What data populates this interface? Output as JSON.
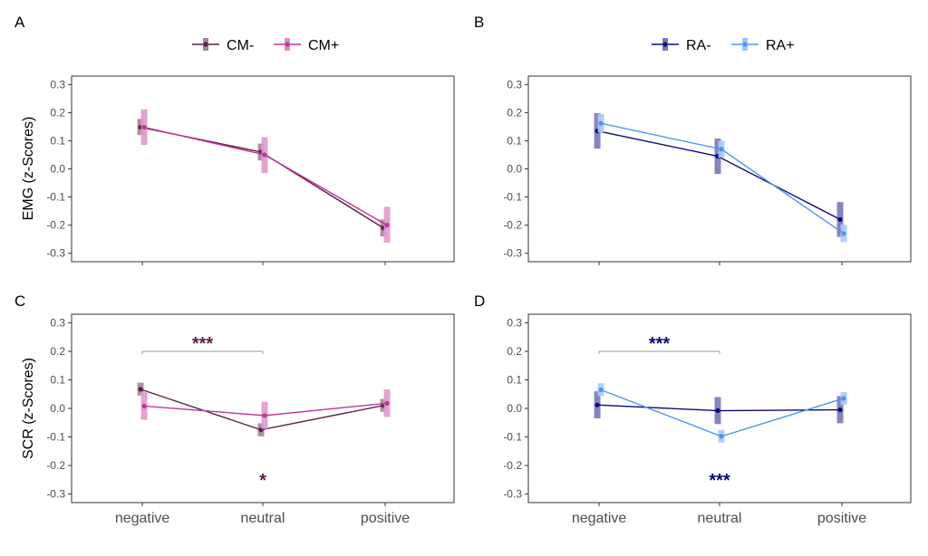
{
  "chart_data": [
    {
      "panel": "A",
      "type": "line",
      "categories": [
        "negative",
        "neutral",
        "positive"
      ],
      "ylabel": "EMG (z-Scores)",
      "ylim": [
        -0.33,
        0.33
      ],
      "yticks": [
        -0.3,
        -0.2,
        -0.1,
        0.0,
        0.1,
        0.2,
        0.3
      ],
      "grid": false,
      "legend": "top",
      "series": [
        {
          "name": "CM-",
          "color": "#5c1f4a",
          "values": [
            0.148,
            0.06,
            -0.21
          ],
          "lower": [
            0.12,
            0.03,
            -0.24
          ],
          "upper": [
            0.178,
            0.09,
            -0.18
          ]
        },
        {
          "name": "CM+",
          "color": "#c0359a",
          "values": [
            0.148,
            0.05,
            -0.2
          ],
          "lower": [
            0.085,
            -0.015,
            -0.262
          ],
          "upper": [
            0.212,
            0.113,
            -0.135
          ]
        }
      ],
      "annotations": []
    },
    {
      "panel": "B",
      "type": "line",
      "categories": [
        "negative",
        "neutral",
        "positive"
      ],
      "ylabel": "",
      "ylim": [
        -0.33,
        0.33
      ],
      "yticks": [
        -0.3,
        -0.2,
        -0.1,
        0.0,
        0.1,
        0.2,
        0.3
      ],
      "grid": false,
      "legend": "top",
      "series": [
        {
          "name": "RA-",
          "color": "#0b0a7a",
          "values": [
            0.135,
            0.045,
            -0.18
          ],
          "lower": [
            0.072,
            -0.018,
            -0.242
          ],
          "upper": [
            0.198,
            0.108,
            -0.118
          ]
        },
        {
          "name": "RA+",
          "color": "#4e95f2",
          "values": [
            0.162,
            0.07,
            -0.23
          ],
          "lower": [
            0.13,
            0.04,
            -0.26
          ],
          "upper": [
            0.195,
            0.1,
            -0.198
          ]
        }
      ],
      "annotations": []
    },
    {
      "panel": "C",
      "type": "line",
      "categories": [
        "negative",
        "neutral",
        "positive"
      ],
      "ylabel": "SCR (z-Scores)",
      "ylim": [
        -0.33,
        0.33
      ],
      "yticks": [
        -0.3,
        -0.2,
        -0.1,
        0.0,
        0.1,
        0.2,
        0.3
      ],
      "grid": false,
      "series": [
        {
          "name": "CM-",
          "color": "#5c1f4a",
          "values": [
            0.067,
            -0.075,
            0.01
          ],
          "lower": [
            0.045,
            -0.098,
            -0.012
          ],
          "upper": [
            0.09,
            -0.052,
            0.033
          ]
        },
        {
          "name": "CM+",
          "color": "#c0359a",
          "values": [
            0.008,
            -0.025,
            0.018
          ],
          "lower": [
            -0.04,
            -0.072,
            -0.03
          ],
          "upper": [
            0.057,
            0.023,
            0.067
          ]
        }
      ],
      "annotations": [
        {
          "label": "***",
          "color": "#5c1f4a",
          "kind": "bracket",
          "from": "negative",
          "to": "neutral",
          "y": 0.2
        },
        {
          "label": "*",
          "color": "#5c1f4a",
          "kind": "text",
          "at": "neutral",
          "y": -0.245
        }
      ]
    },
    {
      "panel": "D",
      "type": "line",
      "categories": [
        "negative",
        "neutral",
        "positive"
      ],
      "ylabel": "",
      "ylim": [
        -0.33,
        0.33
      ],
      "yticks": [
        -0.3,
        -0.2,
        -0.1,
        0.0,
        0.1,
        0.2,
        0.3
      ],
      "grid": false,
      "series": [
        {
          "name": "RA-",
          "color": "#0b0a7a",
          "values": [
            0.012,
            -0.008,
            -0.005
          ],
          "lower": [
            -0.035,
            -0.055,
            -0.052
          ],
          "upper": [
            0.06,
            0.04,
            0.043
          ]
        },
        {
          "name": "RA+",
          "color": "#4e95f2",
          "values": [
            0.065,
            -0.098,
            0.035
          ],
          "lower": [
            0.043,
            -0.12,
            0.013
          ],
          "upper": [
            0.088,
            -0.075,
            0.057
          ]
        }
      ],
      "annotations": [
        {
          "label": "***",
          "color": "#0b0a7a",
          "kind": "bracket",
          "from": "negative",
          "to": "neutral",
          "y": 0.2
        },
        {
          "label": "***",
          "color": "#0b0a7a",
          "kind": "text",
          "at": "neutral",
          "y": -0.245
        }
      ]
    }
  ]
}
